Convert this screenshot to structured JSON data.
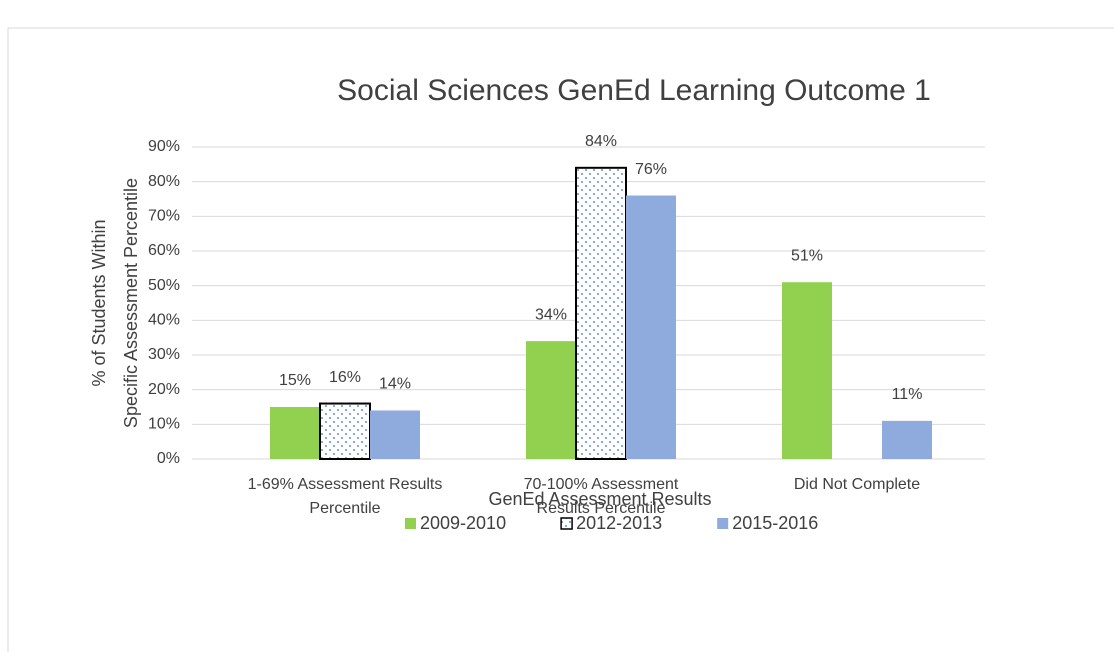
{
  "chart_data": {
    "type": "bar",
    "title": "Social Sciences GenEd Learning Outcome 1",
    "x_label": "GenEd Assessment Results",
    "y_label": [
      "% of Students Within",
      "Specific Assessment Percentile"
    ],
    "categories": [
      "1-69% Assessment Results Percentile",
      "70-100% Assessment Results Percentile",
      "Did Not Complete"
    ],
    "series": [
      {
        "name": "2009-2010",
        "color": "#92d050",
        "values": [
          15,
          34,
          51
        ],
        "value_labels": [
          "15%",
          "34%",
          "51%"
        ]
      },
      {
        "name": "2012-2013",
        "color": "#2e75b6",
        "pattern": "dots",
        "border": "#000000",
        "values": [
          16,
          84,
          null
        ],
        "value_labels": [
          "16%",
          "84%",
          null
        ]
      },
      {
        "name": "2015-2016",
        "color": "#8faadc",
        "values": [
          14,
          76,
          11
        ],
        "value_labels": [
          "14%",
          "76%",
          "11%"
        ]
      }
    ],
    "ylim": [
      0,
      90
    ],
    "yticks": [
      {
        "value": 0,
        "label": "0%"
      },
      {
        "value": 10,
        "label": "10%"
      },
      {
        "value": 20,
        "label": "20%"
      },
      {
        "value": 30,
        "label": "30%"
      },
      {
        "value": 40,
        "label": "40%"
      },
      {
        "value": 50,
        "label": "50%"
      },
      {
        "value": 60,
        "label": "60%"
      },
      {
        "value": 70,
        "label": "70%"
      },
      {
        "value": 80,
        "label": "80%"
      },
      {
        "value": 90,
        "label": "90%"
      }
    ],
    "grid": true,
    "legend": "bottom"
  }
}
